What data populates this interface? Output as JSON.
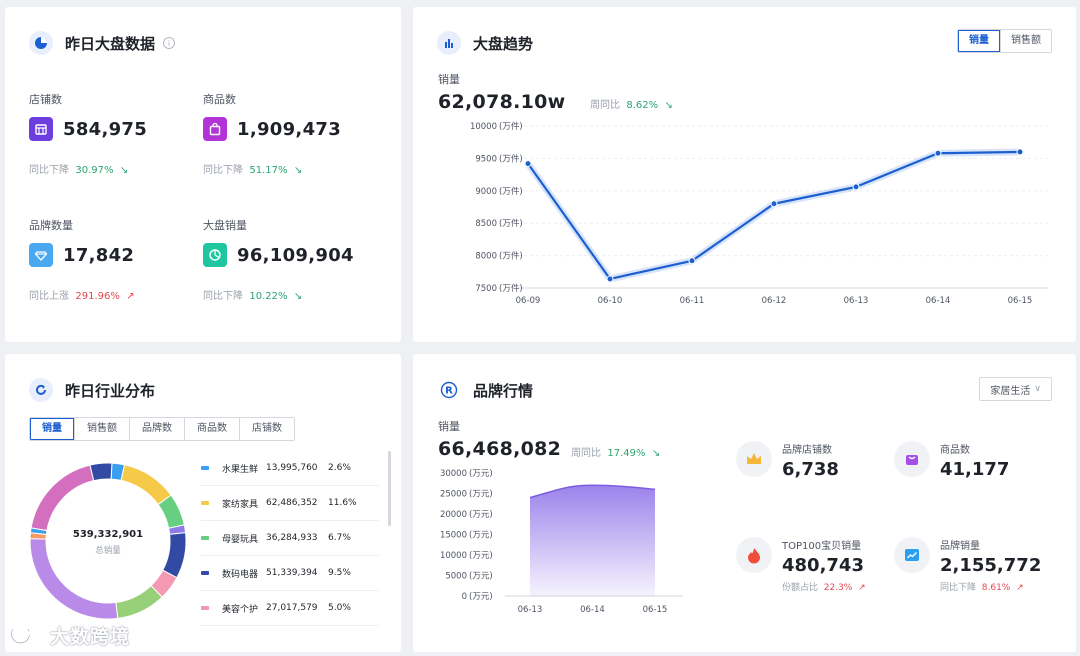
{
  "overview": {
    "title": "昨日大盘数据",
    "info_icon": "i",
    "stats": [
      {
        "label": "店铺数",
        "value": "584,975",
        "compare_label": "同比下降",
        "compare_value": "30.97%",
        "arrow": "↘",
        "color": "#6c3ee0",
        "icon": "store-icon"
      },
      {
        "label": "商品数",
        "value": "1,909,473",
        "compare_label": "同比下降",
        "compare_value": "51.17%",
        "arrow": "↘",
        "color": "#b334d6",
        "icon": "bag-icon"
      },
      {
        "label": "品牌数量",
        "value": "17,842",
        "compare_label": "同比上涨",
        "compare_value": "291.96%",
        "arrow": "↗",
        "color": "#4aa8f0",
        "icon": "diamond-icon"
      },
      {
        "label": "大盘销量",
        "value": "96,109,904",
        "compare_label": "同比下降",
        "compare_value": "10.22%",
        "arrow": "↘",
        "color": "#1fc6a0",
        "icon": "pie-icon"
      }
    ]
  },
  "trend": {
    "title": "大盘趋势",
    "tabs": [
      "销量",
      "销售额"
    ],
    "active_tab": 0,
    "metric_label": "销量",
    "metric_value": "62,078.10w",
    "wow_label": "周同比",
    "wow_value": "8.62%",
    "wow_arrow": "↘"
  },
  "industry": {
    "title": "昨日行业分布",
    "tabs": [
      "销量",
      "销售额",
      "品牌数",
      "商品数",
      "店铺数"
    ],
    "active_tab": 0,
    "total_value": "539,332,901",
    "total_label": "总销量",
    "legend": [
      {
        "name": "水果生鲜",
        "value": "13,995,760",
        "pct": "2.6%",
        "color": "#3a9ff0"
      },
      {
        "name": "家纺家具",
        "value": "62,486,352",
        "pct": "11.6%",
        "color": "#f7c948"
      },
      {
        "name": "母婴玩具",
        "value": "36,284,933",
        "pct": "6.7%",
        "color": "#67cf82"
      },
      {
        "name": "数码电器",
        "value": "51,339,394",
        "pct": "9.5%",
        "color": "#324aa3"
      },
      {
        "name": "美容个护",
        "value": "27,017,579",
        "pct": "5.0%",
        "color": "#f39ab2"
      }
    ]
  },
  "brand": {
    "title": "品牌行情",
    "dropdown_value": "家居生活",
    "metric_label": "销量",
    "metric_value": "66,468,082",
    "wow_label": "周同比",
    "wow_value": "17.49%",
    "wow_arrow": "↘",
    "kpis": [
      {
        "label": "品牌店铺数",
        "value": "6,738",
        "sub_label": "",
        "sub_value": "",
        "icon": "crown-icon"
      },
      {
        "label": "商品数",
        "value": "41,177",
        "sub_label": "",
        "sub_value": "",
        "icon": "bag-icon"
      },
      {
        "label": "TOP100宝贝销量",
        "value": "480,743",
        "sub_label": "份额占比",
        "sub_value": "22.3%",
        "sub_arrow": "↗",
        "icon": "flame-icon"
      },
      {
        "label": "品牌销量",
        "value": "2,155,772",
        "sub_label": "同比下降",
        "sub_value": "8.61%",
        "sub_arrow": "↗",
        "icon": "trend-icon"
      }
    ]
  },
  "watermark": "大数跨境",
  "chart_data": [
    {
      "type": "line",
      "x": [
        "06-09",
        "06-10",
        "06-11",
        "06-12",
        "06-13",
        "06-14",
        "06-15"
      ],
      "series": [
        {
          "values": [
            9420,
            7640,
            7920,
            8800,
            9060,
            9580,
            9600
          ]
        }
      ],
      "ylim": [
        7500,
        10000
      ],
      "yticks": [
        7500,
        8000,
        8500,
        9000,
        9500,
        10000
      ],
      "yunit": "(万件)",
      "grid": true,
      "color": "#1b5fd1"
    },
    {
      "type": "pie",
      "style": "donut",
      "labels": [
        "水果生鲜",
        "家纺家具",
        "母婴玩具",
        "数码电器",
        "美容个护"
      ],
      "values": [
        2.6,
        11.6,
        6.7,
        9.5,
        5.0
      ],
      "extra_segments": [
        {
          "value": 1.6,
          "color": "#8d7be8"
        },
        {
          "value": 10.2,
          "color": "#98d07a"
        },
        {
          "value": 27.5,
          "color": "#b98ae8"
        },
        {
          "value": 1.2,
          "color": "#f59b63"
        },
        {
          "value": 1.0,
          "color": "#3a9ff0"
        },
        {
          "value": 18.6,
          "color": "#d46fbf"
        },
        {
          "value": 4.5,
          "color": "#324aa3"
        }
      ]
    },
    {
      "type": "area",
      "x": [
        "06-13",
        "06-14",
        "06-15"
      ],
      "series": [
        {
          "values": [
            24000,
            27000,
            26000
          ]
        }
      ],
      "ylim": [
        0,
        30000
      ],
      "yticks": [
        0,
        5000,
        10000,
        15000,
        20000,
        25000,
        30000
      ],
      "yunit": "(万元)",
      "color": "#7c5ce0"
    }
  ]
}
